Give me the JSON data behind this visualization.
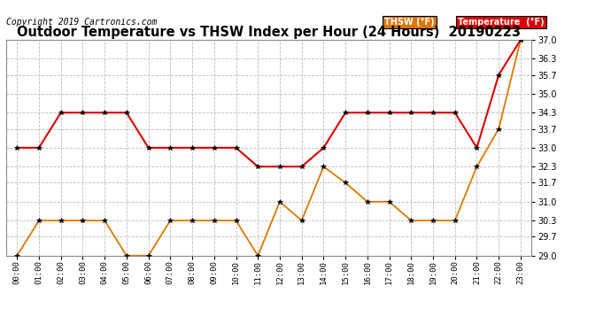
{
  "title": "Outdoor Temperature vs THSW Index per Hour (24 Hours)  20190223",
  "copyright": "Copyright 2019 Cartronics.com",
  "hours": [
    "00:00",
    "01:00",
    "02:00",
    "03:00",
    "04:00",
    "05:00",
    "06:00",
    "07:00",
    "08:00",
    "09:00",
    "10:00",
    "11:00",
    "12:00",
    "13:00",
    "14:00",
    "15:00",
    "16:00",
    "17:00",
    "18:00",
    "19:00",
    "20:00",
    "21:00",
    "22:00",
    "23:00"
  ],
  "temperature": [
    33.0,
    33.0,
    34.3,
    34.3,
    34.3,
    34.3,
    33.0,
    33.0,
    33.0,
    33.0,
    33.0,
    32.3,
    32.3,
    32.3,
    33.0,
    34.3,
    34.3,
    34.3,
    34.3,
    34.3,
    34.3,
    33.0,
    35.7,
    37.0
  ],
  "thsw": [
    29.0,
    30.3,
    30.3,
    30.3,
    30.3,
    29.0,
    29.0,
    30.3,
    30.3,
    30.3,
    30.3,
    29.0,
    31.0,
    30.3,
    32.3,
    31.7,
    31.0,
    31.0,
    30.3,
    30.3,
    30.3,
    32.3,
    33.7,
    37.0
  ],
  "ylim": [
    29.0,
    37.0
  ],
  "yticks": [
    29.0,
    29.7,
    30.3,
    31.0,
    31.7,
    32.3,
    33.0,
    33.7,
    34.3,
    35.0,
    35.7,
    36.3,
    37.0
  ],
  "temp_color": "#dd0000",
  "thsw_color": "#dd7700",
  "bg_color": "#ffffff",
  "plot_bg_color": "#ffffff",
  "grid_color": "#bbbbbb",
  "title_fontsize": 10.5,
  "copyright_fontsize": 7,
  "legend_thsw_label": "THSW (°F)",
  "legend_temp_label": "Temperature  (°F)",
  "legend_thsw_bg": "#dd7700",
  "legend_temp_bg": "#dd0000"
}
